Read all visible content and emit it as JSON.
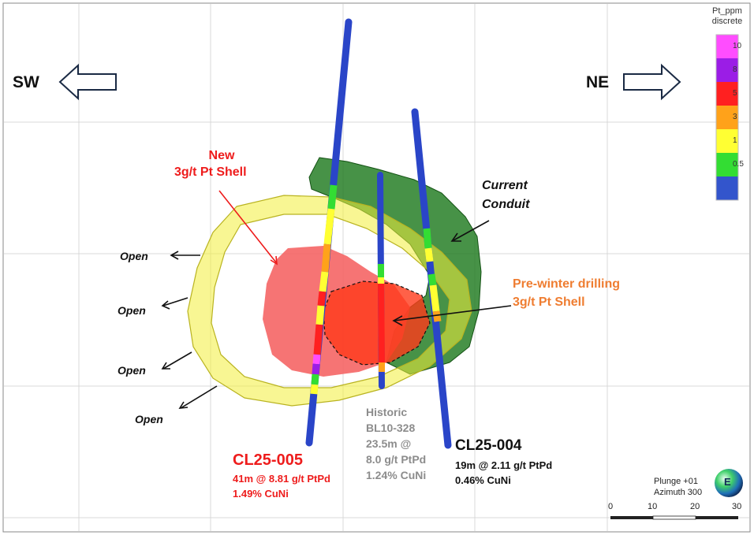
{
  "directions": {
    "sw": "SW",
    "ne": "NE"
  },
  "annotations": {
    "new_shell_line1": "New",
    "new_shell_line2": "3g/t Pt Shell",
    "conduit_line1": "Current",
    "conduit_line2": "Conduit",
    "prewinter_line1": "Pre-winter drilling",
    "prewinter_line2": "3g/t Pt Shell",
    "open_labels": [
      "Open",
      "Open",
      "Open",
      "Open"
    ]
  },
  "drillholes": {
    "cl25_005": {
      "name": "CL25-005",
      "line1": "41m @ 8.81 g/t PtPd",
      "line2": "1.49% CuNi"
    },
    "historic": {
      "line1": "Historic",
      "line2": "BL10-328",
      "line3": "23.5m @",
      "line4": "8.0 g/t PtPd",
      "line5": "1.24% CuNi"
    },
    "cl25_004": {
      "name": "CL25-004",
      "line1": "19m @ 2.11 g/t PtPd",
      "line2": "0.46% CuNi"
    }
  },
  "legend": {
    "title_line1": "Pt_ppm",
    "title_line2": "discrete",
    "bins": [
      {
        "label": "10",
        "color": "#ff4dff"
      },
      {
        "label": "8",
        "color": "#9b1de6"
      },
      {
        "label": "5",
        "color": "#ff2020"
      },
      {
        "label": "3",
        "color": "#ffa21a"
      },
      {
        "label": "1",
        "color": "#ffff33"
      },
      {
        "label": "0.5",
        "color": "#33dd33"
      },
      {
        "label": "",
        "color": "#3355cc"
      }
    ]
  },
  "view": {
    "plunge": "Plunge +01",
    "azimuth": "Azimuth 300",
    "compass_letter": "E"
  },
  "scale_bar": {
    "ticks": [
      "0",
      "10",
      "20",
      "30"
    ]
  },
  "colors": {
    "shell_yellow": "#f2ef3a",
    "new_shell_red": "#f45c5c",
    "prewinter_shell": "#ff3a1a",
    "conduit_green": "#1f7a1f",
    "drill_blue": "#2a45c8"
  }
}
